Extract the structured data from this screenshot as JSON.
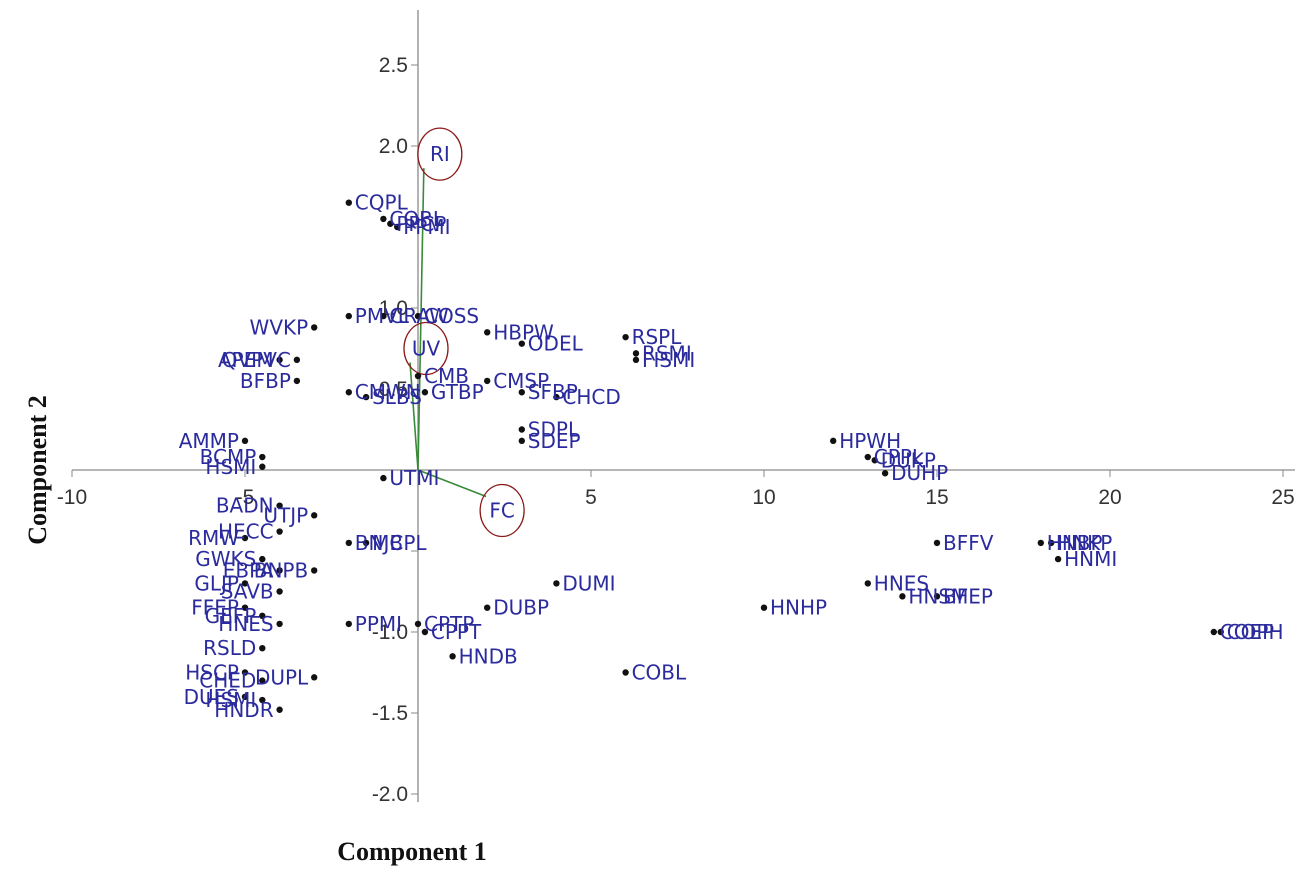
{
  "chart_data": {
    "type": "scatter",
    "xlabel": "Component 1",
    "ylabel": "Component 2",
    "xlim": [
      -10,
      25.5
    ],
    "ylim": [
      -2.05,
      2.95
    ],
    "x_ticks": [
      -10,
      -5,
      0,
      5,
      10,
      15,
      20,
      25
    ],
    "x_tick_labels": [
      "-10",
      "-5",
      "",
      "5",
      "10",
      "15",
      "20",
      "25"
    ],
    "y_ticks": [
      -2.0,
      -1.5,
      -1.0,
      -0.5,
      0,
      0.5,
      1.0,
      1.5,
      2.0,
      2.5
    ],
    "y_tick_labels": [
      "-2.0",
      "-1.5",
      "-1.0",
      "",
      "",
      "0.5",
      "1.0",
      "",
      "2.0",
      "2.5"
    ],
    "grid": false,
    "points": [
      {
        "x": -2.0,
        "y": 1.65,
        "label": "CQPL"
      },
      {
        "x": -1.0,
        "y": 1.55,
        "label": "CQBL"
      },
      {
        "x": -0.8,
        "y": 1.52,
        "label": "PPCP"
      },
      {
        "x": -0.6,
        "y": 1.5,
        "label": "PPMI"
      },
      {
        "x": -3.0,
        "y": 0.88,
        "label": "WVKP"
      },
      {
        "x": -2.0,
        "y": 0.95,
        "label": "PMVL"
      },
      {
        "x": -1.0,
        "y": 0.95,
        "label": "CRAW"
      },
      {
        "x": 0.0,
        "y": 0.95,
        "label": "COSS"
      },
      {
        "x": 2.0,
        "y": 0.85,
        "label": "HBPW"
      },
      {
        "x": 3.0,
        "y": 0.78,
        "label": "ODEL"
      },
      {
        "x": 6.0,
        "y": 0.82,
        "label": "RSPL"
      },
      {
        "x": 6.3,
        "y": 0.72,
        "label": "RSMI"
      },
      {
        "x": 6.3,
        "y": 0.68,
        "label": "FISMI"
      },
      {
        "x": -4.0,
        "y": 0.68,
        "label": "APEM"
      },
      {
        "x": -3.5,
        "y": 0.68,
        "label": "QVPVC"
      },
      {
        "x": -3.5,
        "y": 0.55,
        "label": "BFBP"
      },
      {
        "x": -2.0,
        "y": 0.48,
        "label": "CMWN"
      },
      {
        "x": -1.5,
        "y": 0.45,
        "label": "SLBS"
      },
      {
        "x": 0.0,
        "y": 0.58,
        "label": "CMB"
      },
      {
        "x": 0.2,
        "y": 0.48,
        "label": "GTBP"
      },
      {
        "x": 2.0,
        "y": 0.55,
        "label": "CMSP"
      },
      {
        "x": 3.0,
        "y": 0.48,
        "label": "SFBP"
      },
      {
        "x": 4.0,
        "y": 0.45,
        "label": "CHCD"
      },
      {
        "x": 3.0,
        "y": 0.25,
        "label": "SDPL"
      },
      {
        "x": 3.0,
        "y": 0.18,
        "label": "SDEP"
      },
      {
        "x": -5.0,
        "y": 0.18,
        "label": "AMMP"
      },
      {
        "x": -4.5,
        "y": 0.08,
        "label": "BCMP"
      },
      {
        "x": -4.5,
        "y": 0.02,
        "label": "HSMI"
      },
      {
        "x": 12.0,
        "y": 0.18,
        "label": "HPWH"
      },
      {
        "x": 13.0,
        "y": 0.08,
        "label": "CPPL"
      },
      {
        "x": 13.2,
        "y": 0.06,
        "label": "DUKP"
      },
      {
        "x": 13.5,
        "y": -0.02,
        "label": "DUHP"
      },
      {
        "x": -1.0,
        "y": -0.05,
        "label": "UTMI"
      },
      {
        "x": -4.0,
        "y": -0.22,
        "label": "BADN"
      },
      {
        "x": -3.0,
        "y": -0.28,
        "label": "UTJP"
      },
      {
        "x": -5.0,
        "y": -0.42,
        "label": "RMW"
      },
      {
        "x": -4.0,
        "y": -0.38,
        "label": "HECC"
      },
      {
        "x": -2.0,
        "y": -0.45,
        "label": "BNJB"
      },
      {
        "x": -1.5,
        "y": -0.45,
        "label": "MCPL"
      },
      {
        "x": -4.5,
        "y": -0.55,
        "label": "GWKS"
      },
      {
        "x": -4.0,
        "y": -0.62,
        "label": "EBPA"
      },
      {
        "x": -3.0,
        "y": -0.62,
        "label": "BNPB"
      },
      {
        "x": -5.0,
        "y": -0.7,
        "label": "GLJP"
      },
      {
        "x": -4.0,
        "y": -0.75,
        "label": "SAVB"
      },
      {
        "x": -5.0,
        "y": -0.85,
        "label": "FFEP"
      },
      {
        "x": -4.5,
        "y": -0.9,
        "label": "GEFP"
      },
      {
        "x": -4.0,
        "y": -0.95,
        "label": "HNES"
      },
      {
        "x": -2.0,
        "y": -0.95,
        "label": "PPMI"
      },
      {
        "x": 0.0,
        "y": -0.95,
        "label": "CPTP"
      },
      {
        "x": 0.2,
        "y": -1.0,
        "label": "CPPT"
      },
      {
        "x": 2.0,
        "y": -0.85,
        "label": "DUBP"
      },
      {
        "x": 4.0,
        "y": -0.7,
        "label": "DUMI"
      },
      {
        "x": -4.5,
        "y": -1.1,
        "label": "RSLD"
      },
      {
        "x": -5.0,
        "y": -1.25,
        "label": "HSCP"
      },
      {
        "x": -4.5,
        "y": -1.3,
        "label": "CHED"
      },
      {
        "x": -3.0,
        "y": -1.28,
        "label": "DUPL"
      },
      {
        "x": -5.0,
        "y": -1.4,
        "label": "DUES"
      },
      {
        "x": -4.5,
        "y": -1.42,
        "label": "HSMI"
      },
      {
        "x": -4.0,
        "y": -1.48,
        "label": "HNDR"
      },
      {
        "x": 1.0,
        "y": -1.15,
        "label": "HNDB"
      },
      {
        "x": 6.0,
        "y": -1.25,
        "label": "COBL"
      },
      {
        "x": 10.0,
        "y": -0.85,
        "label": "HNHP"
      },
      {
        "x": 13.0,
        "y": -0.7,
        "label": "HNES"
      },
      {
        "x": 14.0,
        "y": -0.78,
        "label": "HNSM"
      },
      {
        "x": 15.0,
        "y": -0.78,
        "label": "BFEP"
      },
      {
        "x": 15.0,
        "y": -0.45,
        "label": "BFFV"
      },
      {
        "x": 18.0,
        "y": -0.45,
        "label": "HNBP"
      },
      {
        "x": 18.3,
        "y": -0.45,
        "label": "HNKP"
      },
      {
        "x": 18.5,
        "y": -0.55,
        "label": "HNMI"
      },
      {
        "x": 23.0,
        "y": -1.0,
        "label": "COEP"
      },
      {
        "x": 23.2,
        "y": -1.0,
        "label": "COPH"
      }
    ],
    "loadings": [
      {
        "label": "RI",
        "x": 0.4,
        "y": 1.95
      },
      {
        "label": "UV",
        "x": 0.0,
        "y": 0.75
      },
      {
        "label": "FC",
        "x": 2.2,
        "y": -0.25
      }
    ],
    "colors": {
      "point": "#111111",
      "point_label": "#2b2b9e",
      "axis": "#8a8a8a",
      "loading_line": "#3a8a3a",
      "loading_circle": "#8b1a1a"
    }
  }
}
